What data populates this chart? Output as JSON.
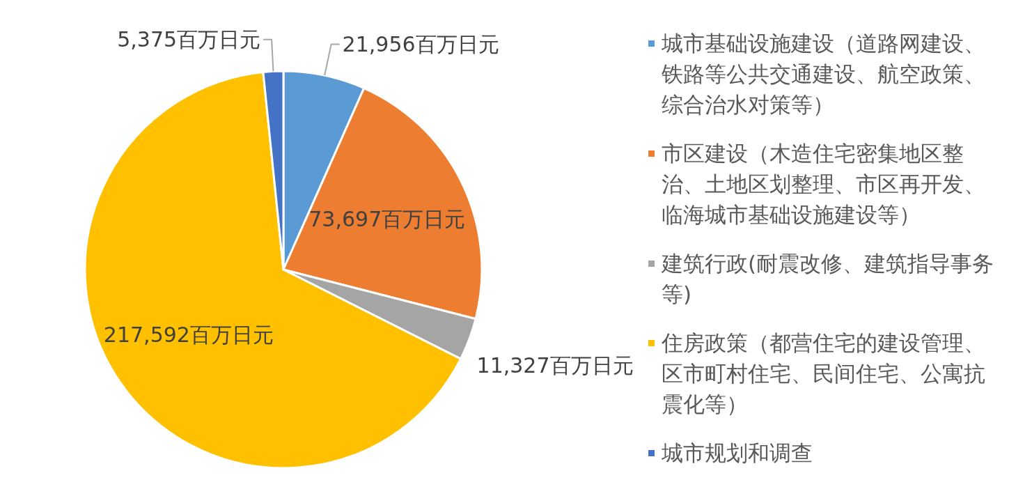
{
  "chart_data": {
    "type": "pie",
    "categories": [
      "城市基础设施建设（道路网建设、铁路等公共交通建设、航空政策、综合治水对策等）",
      "市区建设（木造住宅密集地区整治、土地区划整理、市区再开发、临海城市基础设施建设等）",
      "建筑行政(耐震改修、建筑指导事务等)",
      "住房政策（都营住宅的建设管理、区市町村住宅、民间住宅、公寓抗震化等）",
      "城市规划和调查"
    ],
    "values": [
      21956,
      73697,
      11327,
      217592,
      5375
    ],
    "colors": [
      "#5b9bd5",
      "#ed7d31",
      "#a5a5a5",
      "#ffc000",
      "#4472c4"
    ],
    "value_labels": [
      "21,956百万日元",
      "73,697百万日元",
      "11,327百万日元",
      "217,592百万日元",
      "5,375百万日元"
    ],
    "legend": "right"
  }
}
